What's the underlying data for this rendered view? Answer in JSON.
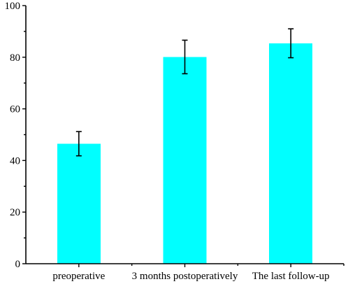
{
  "chart_data": {
    "type": "bar",
    "title": "",
    "xlabel": "",
    "ylabel": "",
    "categories": [
      "preoperative",
      "3 months postoperatively",
      "The last follow-up"
    ],
    "values": [
      46.5,
      80.1,
      85.4
    ],
    "errors": [
      4.7,
      6.5,
      5.6
    ],
    "ylim": [
      0,
      100
    ],
    "yticks": [
      0,
      20,
      40,
      60,
      80,
      100
    ],
    "ytick_labels": [
      "0",
      "20",
      "40",
      "60",
      "80",
      "100"
    ],
    "bar_color": "#00ffff",
    "grid": false,
    "legend": "none"
  }
}
